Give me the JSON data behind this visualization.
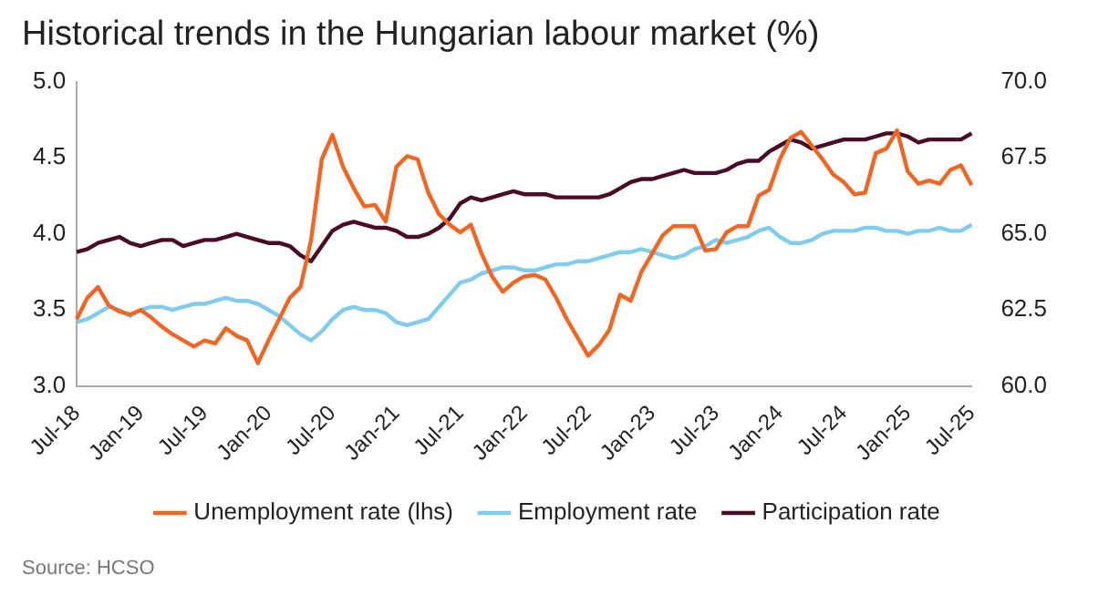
{
  "chart_data": {
    "type": "line",
    "title": "Historical trends in the Hungarian labour market (%)",
    "categories": [
      "Jul-18",
      null,
      null,
      null,
      null,
      null,
      "Jan-19",
      null,
      null,
      null,
      null,
      null,
      "Jul-19",
      null,
      null,
      null,
      null,
      null,
      "Jan-20",
      null,
      null,
      null,
      null,
      null,
      "Jul-20",
      null,
      null,
      null,
      null,
      null,
      "Jan-21",
      null,
      null,
      null,
      null,
      null,
      "Jul-21",
      null,
      null,
      null,
      null,
      null,
      "Jan-22",
      null,
      null,
      null,
      null,
      null,
      "Jul-22",
      null,
      null,
      null,
      null,
      null,
      "Jan-23",
      null,
      null,
      null,
      null,
      null,
      "Jul-23",
      null,
      null,
      null,
      null,
      null,
      "Jan-24",
      null,
      null,
      null,
      null,
      null,
      "Jul-24",
      null,
      null,
      null,
      null,
      null,
      "Jan-25",
      null,
      null,
      null,
      null,
      null,
      "Jul-25"
    ],
    "series": [
      {
        "name": "Unemployment rate (lhs)",
        "color": "#f26522",
        "values": [
          3.44,
          3.58,
          3.65,
          3.53,
          3.49,
          3.47,
          3.5,
          3.45,
          3.39,
          3.34,
          3.3,
          3.26,
          3.3,
          3.28,
          3.38,
          3.33,
          3.3,
          3.15,
          3.3,
          3.44,
          3.58,
          3.65,
          3.96,
          4.49,
          4.65,
          4.44,
          4.3,
          4.18,
          4.19,
          4.08,
          4.44,
          4.51,
          4.49,
          4.27,
          4.13,
          4.06,
          4.01,
          4.06,
          3.87,
          3.72,
          3.62,
          3.68,
          3.72,
          3.73,
          3.7,
          3.58,
          3.44,
          3.32,
          3.2,
          3.27,
          3.37,
          3.6,
          3.56,
          3.75,
          3.87,
          3.99,
          4.05,
          4.05,
          4.05,
          3.89,
          3.9,
          4.01,
          4.05,
          4.05,
          4.25,
          4.29,
          4.49,
          4.63,
          4.67,
          4.58,
          4.49,
          4.39,
          4.34,
          4.26,
          4.27,
          4.53,
          4.56,
          4.68,
          4.41,
          4.33,
          4.35,
          4.33,
          4.42,
          4.45,
          4.32
        ]
      },
      {
        "name": "Employment rate",
        "color": "#80ccf0",
        "axis": "y2",
        "values": [
          62.1,
          62.2,
          62.4,
          62.6,
          62.5,
          62.3,
          62.5,
          62.6,
          62.6,
          62.5,
          62.6,
          62.7,
          62.7,
          62.8,
          62.9,
          62.8,
          62.8,
          62.7,
          62.5,
          62.3,
          62.0,
          61.7,
          61.5,
          61.8,
          62.2,
          62.5,
          62.6,
          62.5,
          62.5,
          62.4,
          62.1,
          62.0,
          62.1,
          62.2,
          62.6,
          63.0,
          63.4,
          63.5,
          63.7,
          63.8,
          63.9,
          63.9,
          63.8,
          63.8,
          63.9,
          64.0,
          64.0,
          64.1,
          64.1,
          64.2,
          64.3,
          64.4,
          64.4,
          64.5,
          64.4,
          64.3,
          64.2,
          64.3,
          64.5,
          64.6,
          64.8,
          64.7,
          64.8,
          64.9,
          65.1,
          65.2,
          64.9,
          64.7,
          64.7,
          64.8,
          65.0,
          65.1,
          65.1,
          65.1,
          65.2,
          65.2,
          65.1,
          65.1,
          65.0,
          65.1,
          65.1,
          65.2,
          65.1,
          65.1,
          65.3
        ]
      },
      {
        "name": "Participation rate",
        "color": "#4a0b26",
        "axis": "y2",
        "values": [
          64.4,
          64.5,
          64.7,
          64.8,
          64.9,
          64.7,
          64.6,
          64.7,
          64.8,
          64.8,
          64.6,
          64.7,
          64.8,
          64.8,
          64.9,
          65.0,
          64.9,
          64.8,
          64.7,
          64.7,
          64.6,
          64.3,
          64.1,
          64.6,
          65.1,
          65.3,
          65.4,
          65.3,
          65.2,
          65.2,
          65.1,
          64.9,
          64.9,
          65.0,
          65.2,
          65.5,
          66.0,
          66.2,
          66.1,
          66.2,
          66.3,
          66.4,
          66.3,
          66.3,
          66.3,
          66.2,
          66.2,
          66.2,
          66.2,
          66.2,
          66.3,
          66.5,
          66.7,
          66.8,
          66.8,
          66.9,
          67.0,
          67.1,
          67.0,
          67.0,
          67.0,
          67.1,
          67.3,
          67.4,
          67.4,
          67.7,
          67.9,
          68.1,
          68.0,
          67.8,
          67.9,
          68.0,
          68.1,
          68.1,
          68.1,
          68.2,
          68.3,
          68.3,
          68.2,
          68.0,
          68.1,
          68.1,
          68.1,
          68.1,
          68.3
        ]
      }
    ],
    "ylim": [
      3.0,
      5.0
    ],
    "yticks": [
      {
        "value": 3,
        "label": "3.0"
      },
      3.5,
      {
        "value": 4,
        "label": "4.0"
      },
      4.5,
      {
        "value": 5,
        "label": "5.0"
      }
    ],
    "y2lim": [
      60.0,
      70.0
    ],
    "y2ticks": [
      {
        "value": 60,
        "label": "60.0"
      },
      62.5,
      {
        "value": 65,
        "label": "65.0"
      },
      67.5,
      {
        "value": 70,
        "label": "70.0"
      }
    ],
    "legend": "bottom",
    "grid": false,
    "marker": "none",
    "line_style": "solid",
    "annotations": [
      "Source: HCSO"
    ]
  }
}
